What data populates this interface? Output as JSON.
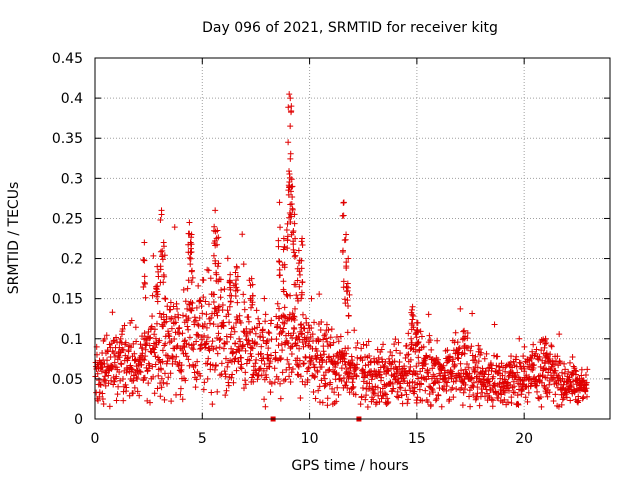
{
  "chart_data": {
    "type": "scatter",
    "title": "Day 096 of 2021, SRMTID for receiver kitg",
    "xlabel": "GPS time / hours",
    "ylabel": "SRMTID / TECUs",
    "xlim": [
      0,
      24
    ],
    "ylim": [
      0,
      0.45
    ],
    "xticks": [
      0,
      5,
      10,
      15,
      20
    ],
    "xtick_labels": [
      "0",
      "5",
      "10",
      "15",
      "20"
    ],
    "yticks": [
      0,
      0.05,
      0.1,
      0.15,
      0.2,
      0.25,
      0.3,
      0.35,
      0.4,
      0.45
    ],
    "ytick_labels": [
      "0",
      "0.05",
      "0.1",
      "0.15",
      "0.2",
      "0.25",
      "0.3",
      "0.35",
      "0.4",
      "0.45"
    ],
    "grid": true,
    "marker": "+",
    "series_color": "#e00000",
    "data_gaps_x": [
      8.3,
      12.3
    ],
    "baseline_envelope": {
      "x": [
        0,
        1,
        2,
        3,
        4,
        5,
        6,
        7,
        8,
        9,
        10,
        11,
        12,
        13,
        14,
        15,
        16,
        17,
        18,
        19,
        20,
        21,
        22,
        23
      ],
      "y": [
        0.05,
        0.07,
        0.065,
        0.09,
        0.095,
        0.11,
        0.11,
        0.1,
        0.08,
        0.1,
        0.075,
        0.07,
        0.06,
        0.05,
        0.055,
        0.065,
        0.055,
        0.07,
        0.05,
        0.045,
        0.05,
        0.055,
        0.045,
        0.04
      ]
    },
    "peak_points": {
      "x": [
        2.3,
        2.9,
        3.1,
        3.2,
        4.4,
        4.5,
        5.6,
        5.7,
        6.3,
        6.6,
        7.3,
        8.6,
        8.8,
        9.0,
        9.05,
        9.1,
        9.15,
        9.2,
        9.3,
        9.5,
        9.65,
        11.6,
        11.7,
        11.8,
        14.8,
        15.0,
        17.2,
        21.0
      ],
      "y": [
        0.22,
        0.19,
        0.26,
        0.22,
        0.245,
        0.23,
        0.26,
        0.235,
        0.18,
        0.19,
        0.175,
        0.27,
        0.225,
        0.345,
        0.405,
        0.4,
        0.39,
        0.29,
        0.255,
        0.21,
        0.225,
        0.27,
        0.23,
        0.2,
        0.14,
        0.12,
        0.11,
        0.1
      ]
    }
  }
}
